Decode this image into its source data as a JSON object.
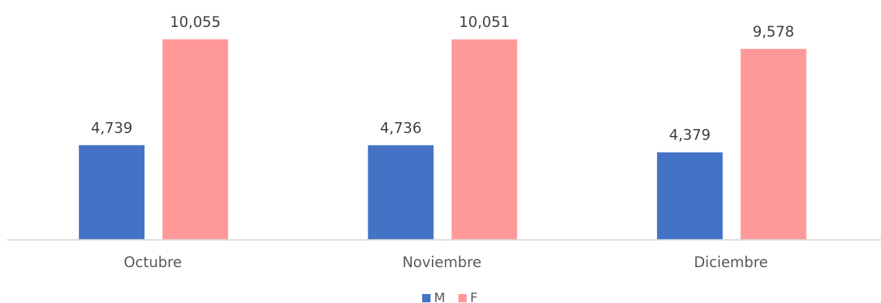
{
  "chart_data": {
    "type": "bar",
    "categories": [
      "Octubre",
      "Noviembre",
      "Diciembre"
    ],
    "series": [
      {
        "name": "M",
        "color": "#4472c4",
        "values": [
          4739,
          4736,
          4379
        ],
        "value_labels": [
          "4,739",
          "4,736",
          "4,379"
        ]
      },
      {
        "name": "F",
        "color": "#ff9999",
        "values": [
          10055,
          10051,
          9578
        ],
        "value_labels": [
          "10,055",
          "10,051",
          "9,578"
        ]
      }
    ],
    "legend": "bottom"
  }
}
